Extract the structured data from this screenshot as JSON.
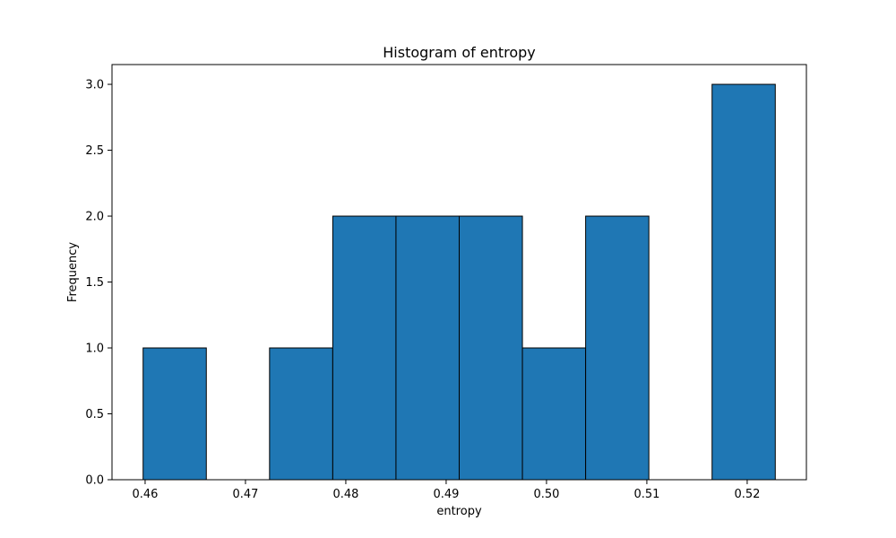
{
  "chart_data": {
    "type": "bar",
    "title": "Histogram of entropy",
    "xlabel": "entropy",
    "ylabel": "Frequency",
    "bins": [
      {
        "start": 0.4598,
        "end": 0.4661,
        "count": 1
      },
      {
        "start": 0.4661,
        "end": 0.4724,
        "count": 0
      },
      {
        "start": 0.4724,
        "end": 0.4787,
        "count": 1
      },
      {
        "start": 0.4787,
        "end": 0.485,
        "count": 2
      },
      {
        "start": 0.485,
        "end": 0.4913,
        "count": 2
      },
      {
        "start": 0.4913,
        "end": 0.4976,
        "count": 2
      },
      {
        "start": 0.4976,
        "end": 0.5039,
        "count": 1
      },
      {
        "start": 0.5039,
        "end": 0.5102,
        "count": 2
      },
      {
        "start": 0.5102,
        "end": 0.5165,
        "count": 0
      },
      {
        "start": 0.5165,
        "end": 0.5228,
        "count": 3
      }
    ],
    "xlim": [
      0.4567,
      0.5259
    ],
    "ylim": [
      0,
      3.15
    ],
    "x_ticks": [
      0.46,
      0.47,
      0.48,
      0.49,
      0.5,
      0.51,
      0.52
    ],
    "x_tick_labels": [
      "0.46",
      "0.47",
      "0.48",
      "0.49",
      "0.50",
      "0.51",
      "0.52"
    ],
    "y_ticks": [
      0,
      0.5,
      1.0,
      1.5,
      2.0,
      2.5,
      3.0
    ],
    "y_tick_labels": [
      "0.0",
      "0.5",
      "1.0",
      "1.5",
      "2.0",
      "2.5",
      "3.0"
    ],
    "bar_color": "#1f77b4",
    "edge_color": "#000000",
    "grid": false,
    "legend": "none"
  }
}
